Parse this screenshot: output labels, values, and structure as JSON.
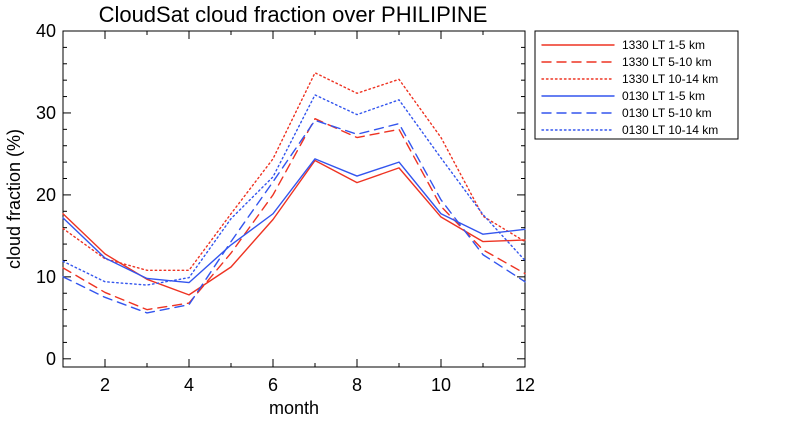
{
  "chart_data": {
    "type": "line",
    "title": "CloudSat cloud fraction over PHILIPINE",
    "xlabel": "month",
    "ylabel": "cloud fraction (%)",
    "xlim": [
      1,
      12
    ],
    "ylim": [
      -1,
      40
    ],
    "xticks": [
      2,
      4,
      6,
      8,
      10,
      12
    ],
    "yticks": [
      0,
      10,
      20,
      30,
      40
    ],
    "grid": false,
    "legend_position": "top-right outside plot",
    "x": [
      1,
      2,
      3,
      4,
      5,
      6,
      7,
      8,
      9,
      10,
      11,
      12
    ],
    "series": [
      {
        "name": "1330 LT 1-5 km",
        "color": "#ee3322",
        "line_style": "solid",
        "values": [
          17.7,
          12.8,
          9.7,
          7.8,
          11.2,
          17.0,
          24.2,
          21.5,
          23.3,
          17.3,
          14.3,
          14.5
        ]
      },
      {
        "name": "1330 LT 5-10 km",
        "color": "#ee3322",
        "line_style": "dashed",
        "values": [
          11.1,
          8.1,
          6.0,
          6.8,
          12.9,
          20.0,
          29.3,
          27.0,
          28.0,
          18.6,
          13.3,
          10.4
        ]
      },
      {
        "name": "1330 LT 10-14 km",
        "color": "#ee3322",
        "line_style": "dotted",
        "values": [
          15.9,
          12.2,
          10.8,
          10.8,
          17.7,
          24.4,
          34.9,
          32.4,
          34.1,
          27.0,
          17.4,
          14.3
        ]
      },
      {
        "name": "0130 LT 1-5 km",
        "color": "#3355ee",
        "line_style": "solid",
        "values": [
          17.2,
          12.3,
          9.8,
          9.3,
          13.9,
          17.7,
          24.4,
          22.3,
          24.0,
          17.7,
          15.2,
          15.8
        ]
      },
      {
        "name": "0130 LT 5-10 km",
        "color": "#3355ee",
        "line_style": "dashed",
        "values": [
          10.0,
          7.5,
          5.6,
          6.6,
          14.3,
          21.6,
          29.1,
          27.4,
          28.7,
          19.4,
          12.7,
          9.4
        ]
      },
      {
        "name": "0130 LT 10-14 km",
        "color": "#3355ee",
        "line_style": "dotted",
        "values": [
          11.9,
          9.4,
          9.0,
          9.9,
          17.1,
          22.2,
          32.2,
          29.8,
          31.6,
          24.5,
          17.6,
          12.0
        ]
      }
    ]
  }
}
